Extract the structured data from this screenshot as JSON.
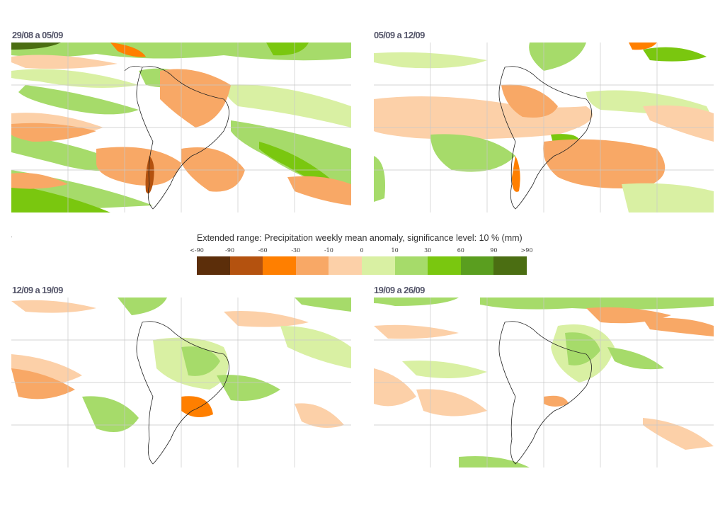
{
  "panels": [
    {
      "title": "29/08 a 05/09"
    },
    {
      "title": "05/09 a 12/09"
    },
    {
      "title": "12/09 a 19/09"
    },
    {
      "title": "19/09 a 26/09"
    }
  ],
  "legend": {
    "title": "Extended range: Precipitation weekly mean anomaly, significance level: 10 % (mm)",
    "ticks": [
      "<-90",
      "-90",
      "-60",
      "-30",
      "-10",
      "0",
      "10",
      "30",
      "60",
      "90",
      ">90"
    ],
    "colors": [
      "#5c2e0a",
      "#b4520f",
      "#ff7f00",
      "#f8a866",
      "#fcd0a8",
      "#d9f0a3",
      "#a6db6a",
      "#7ac70f",
      "#5a9e1f",
      "#4b6e12"
    ]
  },
  "map_colors": {
    "dry_dark": "#b4520f",
    "dry_mid": "#ff7f00",
    "dry": "#f8a866",
    "dry_light": "#fcd0a8",
    "wet_light": "#d9f0a3",
    "wet": "#a6db6a",
    "wet_mid": "#7ac70f",
    "wet_dark": "#4b6e12",
    "grid": "#c8c8c8",
    "coast": "#222222"
  }
}
